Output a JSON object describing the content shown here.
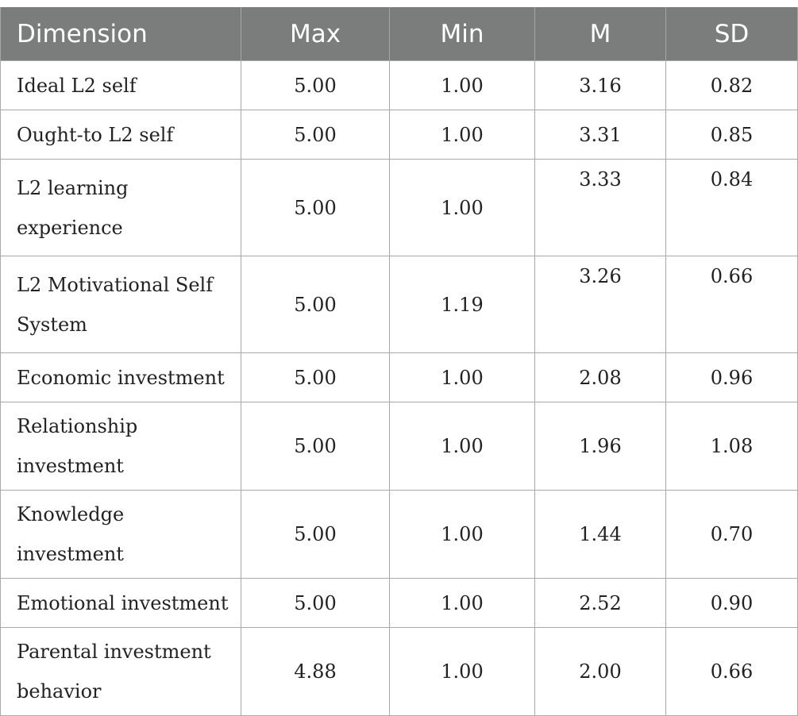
{
  "table": {
    "headers": [
      "Dimension",
      "Max",
      "Min",
      "M",
      "SD"
    ],
    "rows": [
      {
        "dimension": "Ideal L2 self",
        "max": "5.00",
        "min": "1.00",
        "m": "3.16",
        "sd": "0.82"
      },
      {
        "dimension": "Ought-to L2 self",
        "max": "5.00",
        "min": "1.00",
        "m": "3.31",
        "sd": "0.85"
      },
      {
        "dimension": "L2 learning experience",
        "max": "5.00",
        "min": "1.00",
        "m": "3.33",
        "sd": "0.84"
      },
      {
        "dimension": "L2 Motivational Self System",
        "max": "5.00",
        "min": "1.19",
        "m": "3.26",
        "sd": "0.66"
      },
      {
        "dimension": "Economic investment",
        "max": "5.00",
        "min": "1.00",
        "m": "2.08",
        "sd": "0.96"
      },
      {
        "dimension": "Relationship investment",
        "max": "5.00",
        "min": "1.00",
        "m": "1.96",
        "sd": "1.08"
      },
      {
        "dimension": "Knowledge investment",
        "max": "5.00",
        "min": "1.00",
        "m": "1.44",
        "sd": "0.70"
      },
      {
        "dimension": "Emotional investment",
        "max": "5.00",
        "min": "1.00",
        "m": "2.52",
        "sd": "0.90"
      },
      {
        "dimension": "Parental investment behavior",
        "max": "4.88",
        "min": "1.00",
        "m": "2.00",
        "sd": "0.66"
      }
    ]
  }
}
